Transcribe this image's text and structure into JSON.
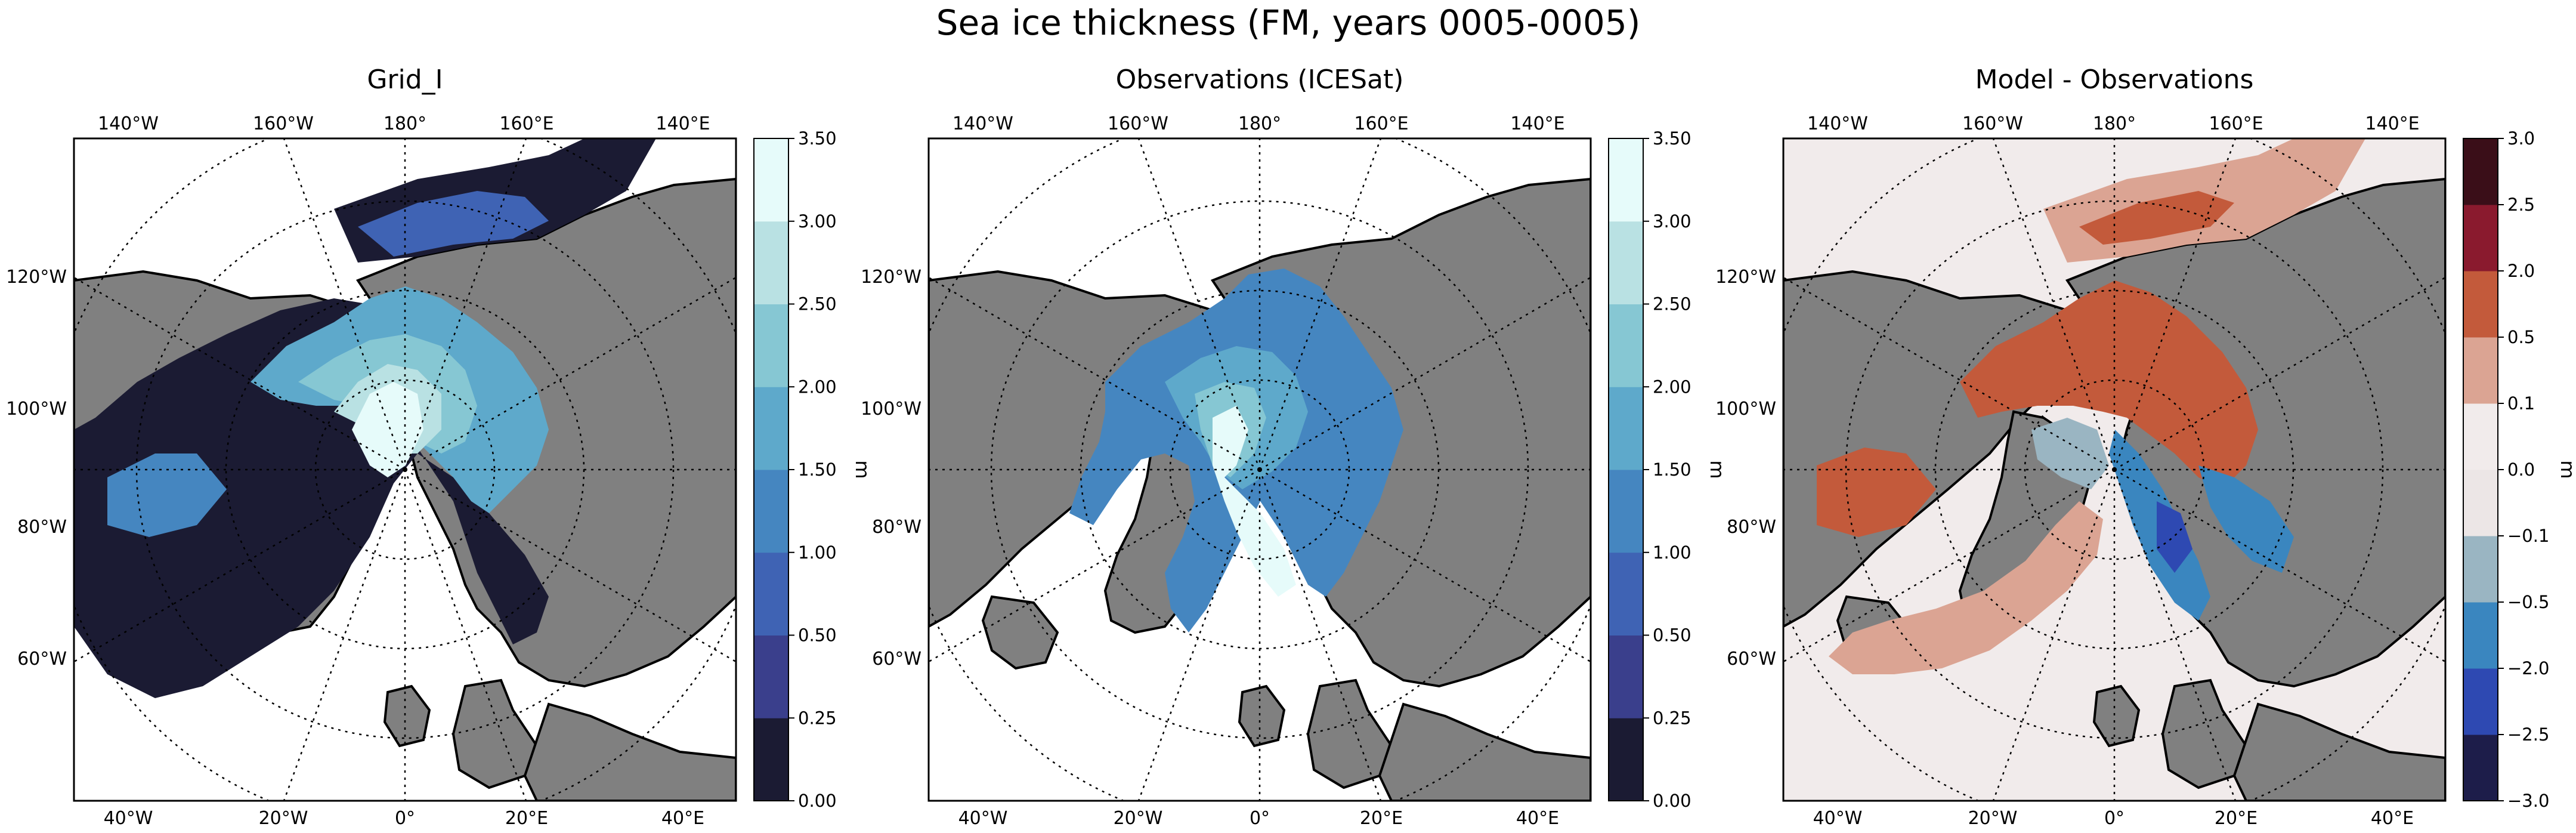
{
  "figure": {
    "title": "Sea ice thickness (FM, years 0005-0005)"
  },
  "colors": {
    "land": "#808080",
    "ocean": "#ffffff",
    "thickness_scale": [
      "#1b1b33",
      "#3a3f8c",
      "#3f63b4",
      "#4586c0",
      "#5ea9cb",
      "#86c7d3",
      "#b9e1e3",
      "#e6fbfa"
    ],
    "difference_scale": [
      "#1d1d4a",
      "#2e49b2",
      "#3a86bf",
      "#9ab5c2",
      "#ece6e6",
      "#f1ebeb",
      "#dba493",
      "#c35a3b",
      "#8a1a2e",
      "#3a0e18"
    ]
  },
  "panels": [
    {
      "id": "grid_i",
      "title": "Grid_I",
      "lon_top_labels": [
        "140°W",
        "160°W",
        "180°",
        "160°E",
        "140°E"
      ],
      "lon_bottom_labels": [
        "40°W",
        "20°W",
        "0°",
        "20°E",
        "40°E"
      ],
      "lat_labels": [
        "120°W",
        "100°W",
        "80°W",
        "60°W"
      ],
      "colorbar": {
        "unit": "m",
        "ticks": [
          "0.00",
          "0.25",
          "0.50",
          "1.00",
          "1.50",
          "2.00",
          "2.50",
          "3.00",
          "3.50"
        ],
        "palette": "thickness_scale"
      }
    },
    {
      "id": "observations",
      "title": "Observations (ICESat)",
      "lon_top_labels": [
        "140°W",
        "160°W",
        "180°",
        "160°E",
        "140°E"
      ],
      "lon_bottom_labels": [
        "40°W",
        "20°W",
        "0°",
        "20°E",
        "40°E"
      ],
      "lat_labels": [
        "120°W",
        "100°W",
        "80°W",
        "60°W"
      ],
      "colorbar": {
        "unit": "m",
        "ticks": [
          "0.00",
          "0.25",
          "0.50",
          "1.00",
          "1.50",
          "2.00",
          "2.50",
          "3.00",
          "3.50"
        ],
        "palette": "thickness_scale"
      }
    },
    {
      "id": "difference",
      "title": "Model - Observations",
      "lon_top_labels": [
        "140°W",
        "160°W",
        "180°",
        "160°E",
        "140°E"
      ],
      "lon_bottom_labels": [
        "40°W",
        "20°W",
        "0°",
        "20°E",
        "40°E"
      ],
      "lat_labels": [
        "120°W",
        "100°W",
        "80°W",
        "60°W"
      ],
      "colorbar": {
        "unit": "m",
        "ticks": [
          "−3.0",
          "−2.5",
          "−2.0",
          "−0.5",
          "−0.1",
          "0.0",
          "0.1",
          "0.5",
          "2.0",
          "2.5",
          "3.0"
        ],
        "palette": "difference_scale"
      }
    }
  ]
}
